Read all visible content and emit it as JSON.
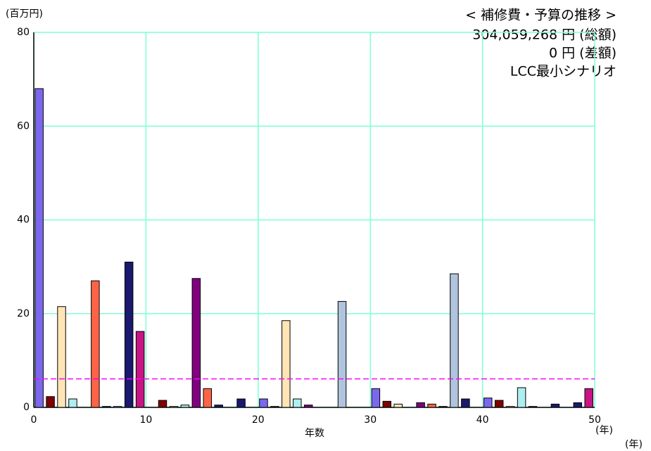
{
  "chart_data": {
    "type": "bar",
    "title": "< 補修費・予算の推移 >",
    "subtitles": [
      "304,059,268 円 (総額)",
      "0 円 (差額)",
      "LCC最小シナリオ"
    ],
    "y_unit": "(百万円)",
    "x_label": "年数",
    "x_unit": "(年)",
    "x": [
      0,
      1,
      2,
      3,
      4,
      5,
      6,
      7,
      8,
      9,
      10,
      11,
      12,
      13,
      14,
      15,
      16,
      17,
      18,
      19,
      20,
      21,
      22,
      23,
      24,
      25,
      26,
      27,
      28,
      29,
      30,
      31,
      32,
      33,
      34,
      35,
      36,
      37,
      38,
      39,
      40,
      41,
      42,
      43,
      44,
      45,
      46,
      47,
      48,
      49
    ],
    "values": [
      68,
      2.3,
      21.5,
      1.8,
      0,
      27,
      0.2,
      0.2,
      31,
      16.2,
      0,
      1.5,
      0.2,
      0.5,
      27.5,
      4,
      0.5,
      0,
      1.8,
      0,
      1.8,
      0.2,
      18.5,
      1.8,
      0.5,
      0,
      0,
      22.6,
      0,
      0,
      4,
      1.3,
      0.7,
      0,
      1,
      0.7,
      0.2,
      28.5,
      1.8,
      0,
      2,
      1.5,
      0.2,
      4.2,
      0.2,
      0,
      0.7,
      0,
      1,
      4
    ],
    "colors": [
      "#7b68ee",
      "#800000",
      "#ffe4b5",
      "#afeeee",
      "#800080",
      "#ff6347",
      "#191970",
      "#b0c4de",
      "#191970",
      "#c71585",
      "#7b68ee",
      "#800000",
      "#ffe4b5",
      "#afeeee",
      "#800080",
      "#ff6347",
      "#191970",
      "#b0c4de",
      "#191970",
      "#c71585",
      "#7b68ee",
      "#800000",
      "#ffe4b5",
      "#afeeee",
      "#800080",
      "#ff6347",
      "#191970",
      "#b0c4de",
      "#191970",
      "#c71585",
      "#7b68ee",
      "#800000",
      "#ffe4b5",
      "#afeeee",
      "#800080",
      "#ff6347",
      "#191970",
      "#b0c4de",
      "#191970",
      "#c71585",
      "#7b68ee",
      "#800000",
      "#ffe4b5",
      "#afeeee",
      "#800080",
      "#ff6347",
      "#191970",
      "#b0c4de",
      "#191970",
      "#c71585"
    ],
    "reference_line": 6.08,
    "reference_color": "#ff00ff",
    "xlim": [
      0,
      50
    ],
    "xticks": [
      0,
      10,
      20,
      30,
      40,
      50
    ],
    "ylim": [
      0,
      80
    ],
    "yticks": [
      0,
      20,
      40,
      60,
      80
    ],
    "grid": true,
    "grid_color": "#7fffd4"
  }
}
